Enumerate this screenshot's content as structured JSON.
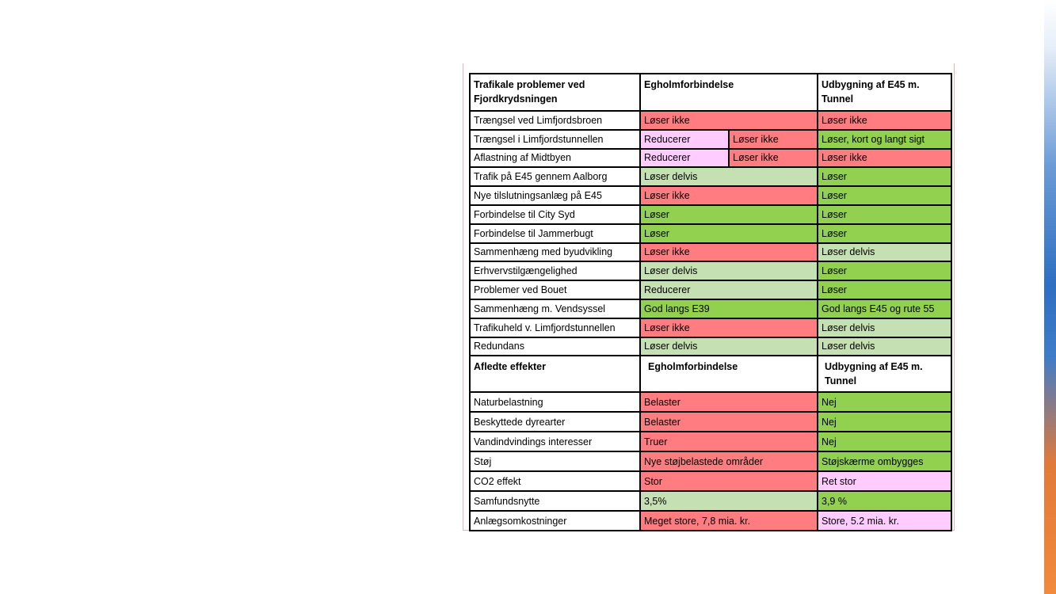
{
  "colors": {
    "red": "#ff7c80",
    "green": "#92d050",
    "light_green": "#c5e0b3",
    "pink": "#ffccff"
  },
  "table": {
    "header1": {
      "col1": "Trafikale problemer ved Fjordkrydsningen",
      "col2": "Egholmforbindelse",
      "col3": "Udbygning af E45 m. Tunnel"
    },
    "rows1": [
      {
        "label": "Trængsel ved Limfjordsbroen",
        "eg": "Løser ikke",
        "e45": "Løser ikke"
      },
      {
        "label": "Trængsel i Limfjordstunnellen",
        "eg_a": "Reducerer",
        "eg_b": "Løser ikke",
        "e45": "Løser, kort og langt sigt"
      },
      {
        "label": "Aflastning af Midtbyen",
        "eg_a": "Reducerer",
        "eg_b": "Løser ikke",
        "e45": "Løser ikke"
      },
      {
        "label": "Trafik på E45 gennem Aalborg",
        "eg": "Løser delvis",
        "e45": "Løser"
      },
      {
        "label": "Nye tilslutningsanlæg på E45",
        "eg": "Løser ikke",
        "e45": "Løser"
      },
      {
        "label": "Forbindelse til City Syd",
        "eg": "Løser",
        "e45": "Løser"
      },
      {
        "label": "Forbindelse til Jammerbugt",
        "eg": "Løser",
        "e45": "Løser"
      },
      {
        "label": "Sammenhæng med byudvikling",
        "eg": "Løser ikke",
        "e45": "Løser delvis"
      },
      {
        "label": "Erhvervstilgængelighed",
        "eg": "Løser delvis",
        "e45": "Løser"
      },
      {
        "label": "Problemer ved Bouet",
        "eg": "Reducerer",
        "e45": "Løser"
      },
      {
        "label": "Sammenhæng m. Vendsyssel",
        "eg": "God langs E39",
        "e45": "God langs E45 og rute 55"
      },
      {
        "label": "Trafikuheld v. Limfjordstunnellen",
        "eg": "Løser ikke",
        "e45": "Løser delvis"
      },
      {
        "label": "Redundans",
        "eg": "Løser delvis",
        "e45": "Løser delvis"
      }
    ],
    "header2": {
      "col1": "Afledte effekter",
      "col2": "Egholmforbindelse",
      "col3": "Udbygning af E45 m. Tunnel"
    },
    "rows2": [
      {
        "label": "Naturbelastning",
        "eg": "Belaster",
        "e45": "Nej"
      },
      {
        "label": "Beskyttede dyrearter",
        "eg": "Belaster",
        "e45": "Nej"
      },
      {
        "label": "Vandindvindings interesser",
        "eg": "Truer",
        "e45": "Nej"
      },
      {
        "label": "Støj",
        "eg": "Nye støjbelastede områder",
        "e45": "Støjskærme ombygges"
      },
      {
        "label": "CO2 effekt",
        "eg": "Stor",
        "e45": "Ret stor"
      },
      {
        "label": "Samfundsnytte",
        "eg": "3,5%",
        "e45": "3,9 %"
      },
      {
        "label": "Anlægsomkostninger",
        "eg": "Meget store, 7,8 mia. kr.",
        "e45": "Store, 5.2 mia. kr."
      }
    ]
  }
}
